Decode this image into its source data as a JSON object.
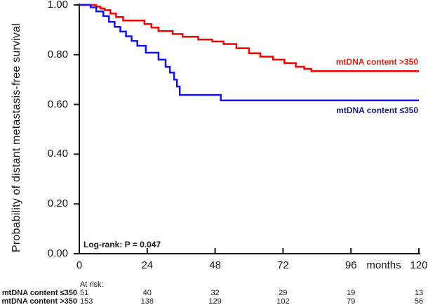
{
  "chart_data": {
    "type": "line",
    "subtype": "kaplan-meier-step",
    "title": "",
    "y_title": "Probability of distant metastasis-free survival",
    "x_unit": "months",
    "annotation": "Log-rank: P = 0.047",
    "xlim": [
      0,
      120
    ],
    "ylim": [
      0,
      1
    ],
    "grid": false,
    "axis_color": "#1a1a1a",
    "background": "#ffffff",
    "x_ticks": [
      "0",
      "24",
      "48",
      "72",
      "96",
      "120"
    ],
    "x_tick_values": [
      0,
      24,
      48,
      72,
      96,
      120
    ],
    "y_ticks": [
      "1.00",
      "0.80",
      "0.60",
      "0.40",
      "0.20",
      "0.00"
    ],
    "y_tick_values": [
      1.0,
      0.8,
      0.6,
      0.4,
      0.2,
      0.0
    ],
    "series": [
      {
        "id": "gt350",
        "label": "mtDNA content >350",
        "color": "#f20400",
        "label_color": "#e02318",
        "points": [
          [
            0,
            1.0
          ],
          [
            6,
            0.993
          ],
          [
            7.5,
            0.986
          ],
          [
            9,
            0.979
          ],
          [
            11,
            0.965
          ],
          [
            13,
            0.951
          ],
          [
            15.5,
            0.937
          ],
          [
            23,
            0.923
          ],
          [
            25.5,
            0.909
          ],
          [
            28,
            0.895
          ],
          [
            33,
            0.883
          ],
          [
            36.5,
            0.872
          ],
          [
            42,
            0.861
          ],
          [
            47,
            0.853
          ],
          [
            51,
            0.843
          ],
          [
            55.5,
            0.826
          ],
          [
            60,
            0.806
          ],
          [
            64,
            0.792
          ],
          [
            68.5,
            0.78
          ],
          [
            72.5,
            0.766
          ],
          [
            76.5,
            0.751
          ],
          [
            79.5,
            0.743
          ],
          [
            82,
            0.734
          ]
        ]
      },
      {
        "id": "le350",
        "label": "mtDNA content ≤350",
        "color": "#1414e8",
        "label_color": "#1a1a80",
        "points": [
          [
            0,
            1.0
          ],
          [
            4,
            0.99
          ],
          [
            6,
            0.974
          ],
          [
            8.5,
            0.955
          ],
          [
            10.5,
            0.932
          ],
          [
            12.5,
            0.912
          ],
          [
            14.5,
            0.893
          ],
          [
            16.5,
            0.874
          ],
          [
            18.5,
            0.855
          ],
          [
            20.5,
            0.836
          ],
          [
            23.5,
            0.808
          ],
          [
            28,
            0.78
          ],
          [
            30.5,
            0.751
          ],
          [
            32,
            0.728
          ],
          [
            33.5,
            0.7
          ],
          [
            34.5,
            0.672
          ],
          [
            35.5,
            0.638
          ],
          [
            50,
            0.616
          ]
        ]
      }
    ]
  },
  "at_risk": {
    "title": "At risk:",
    "columns_months": [
      0,
      24,
      48,
      72,
      96,
      120
    ],
    "rows": [
      {
        "label": "mtDNA content ≤350",
        "counts": [
          "51",
          "40",
          "32",
          "29",
          "19",
          "13"
        ]
      },
      {
        "label": "mtDNA content >350",
        "counts": [
          "153",
          "138",
          "129",
          "102",
          "79",
          "56"
        ]
      }
    ]
  }
}
